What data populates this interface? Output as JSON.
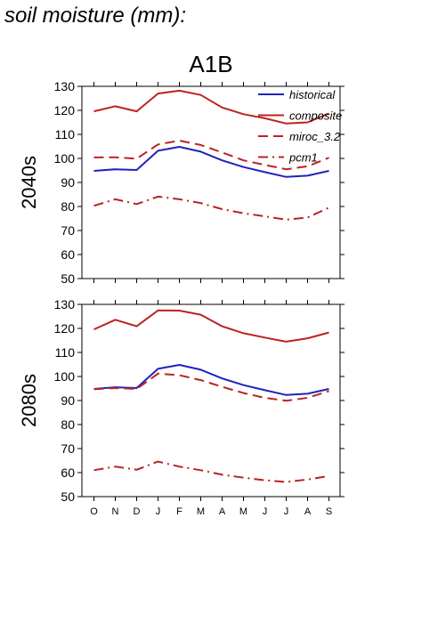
{
  "page_title": "soil moisture (mm):",
  "colors": {
    "historical": "#2222bb",
    "scenario": "#bb2222"
  },
  "chart_data": [
    {
      "type": "line",
      "title": "A1B",
      "ylabel": "2040s",
      "categories": [
        "O",
        "N",
        "D",
        "J",
        "F",
        "M",
        "A",
        "M",
        "J",
        "J",
        "A",
        "S"
      ],
      "ylim": [
        50,
        130
      ],
      "yticks": [
        50,
        60,
        70,
        80,
        90,
        100,
        110,
        120,
        130
      ],
      "grid": false,
      "legend_placement": "top-right",
      "series": [
        {
          "name": "historical",
          "style": "solid",
          "color": "#2222bb",
          "values": [
            94.8,
            95.5,
            95.2,
            103.2,
            104.8,
            102.8,
            99.2,
            96.4,
            94.3,
            92.3,
            92.8,
            94.8
          ]
        },
        {
          "name": "composite",
          "style": "solid",
          "color": "#bb2222",
          "values": [
            119.6,
            121.7,
            119.6,
            127.0,
            128.2,
            126.4,
            121.2,
            118.4,
            116.7,
            114.5,
            115.0,
            118.7
          ]
        },
        {
          "name": "miroc_3.2",
          "style": "dashed",
          "color": "#bb2222",
          "values": [
            100.4,
            100.5,
            99.9,
            105.8,
            107.4,
            105.6,
            102.5,
            99.2,
            97.3,
            95.5,
            96.7,
            100.3
          ]
        },
        {
          "name": "pcm1",
          "style": "dashdot",
          "color": "#bb2222",
          "values": [
            80.3,
            83.0,
            81.0,
            84.1,
            83.0,
            81.4,
            78.9,
            77.2,
            75.9,
            74.5,
            75.4,
            79.5
          ]
        }
      ]
    },
    {
      "type": "line",
      "title": "",
      "ylabel": "2080s",
      "categories": [
        "O",
        "N",
        "D",
        "J",
        "F",
        "M",
        "A",
        "M",
        "J",
        "J",
        "A",
        "S"
      ],
      "ylim": [
        50,
        130
      ],
      "yticks": [
        50,
        60,
        70,
        80,
        90,
        100,
        110,
        120,
        130
      ],
      "grid": false,
      "series": [
        {
          "name": "historical",
          "style": "solid",
          "color": "#2222bb",
          "values": [
            94.8,
            95.5,
            95.2,
            103.2,
            104.8,
            102.8,
            99.2,
            96.4,
            94.3,
            92.3,
            92.8,
            94.8
          ]
        },
        {
          "name": "composite",
          "style": "solid",
          "color": "#bb2222",
          "values": [
            119.6,
            123.6,
            120.9,
            127.5,
            127.4,
            125.7,
            120.9,
            118.0,
            116.2,
            114.5,
            115.9,
            118.3
          ]
        },
        {
          "name": "miroc_3.2",
          "style": "dashed",
          "color": "#bb2222",
          "values": [
            94.7,
            95.2,
            94.8,
            101.2,
            100.5,
            98.5,
            95.7,
            93.1,
            91.1,
            89.9,
            91.1,
            93.9
          ]
        },
        {
          "name": "pcm1",
          "style": "dashdot",
          "color": "#bb2222",
          "values": [
            61.0,
            62.5,
            61.2,
            64.6,
            62.5,
            61.0,
            59.1,
            57.9,
            56.8,
            56.1,
            57.1,
            58.6
          ]
        }
      ]
    }
  ]
}
